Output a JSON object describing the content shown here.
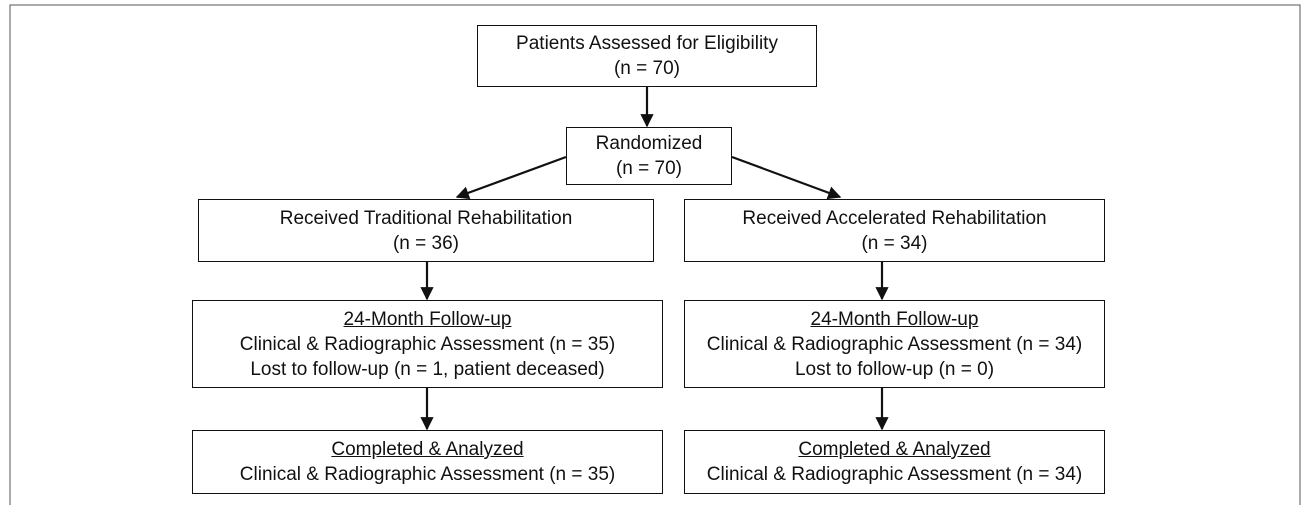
{
  "nodes": [
    {
      "lines": [
        "Patients Assessed for Eligibility",
        "(n = 70)"
      ]
    },
    {
      "lines": [
        "Randomized",
        "(n = 70)"
      ]
    },
    {
      "lines": [
        "Received Traditional Rehabilitation",
        "(n = 36)"
      ]
    },
    {
      "lines": [
        "Received Accelerated Rehabilitation",
        "(n = 34)"
      ]
    },
    {
      "heading": "24-Month Follow-up",
      "lines": [
        "Clinical & Radiographic Assessment (n = 35)",
        "Lost to follow-up (n = 1, patient deceased)"
      ]
    },
    {
      "heading": "24-Month Follow-up",
      "lines": [
        "Clinical & Radiographic Assessment (n = 34)",
        "Lost to follow-up (n = 0)"
      ]
    },
    {
      "heading": "Completed & Analyzed",
      "lines": [
        "Clinical & Radiographic Assessment (n = 35)"
      ]
    },
    {
      "heading": "Completed & Analyzed",
      "lines": [
        "Clinical & Radiographic Assessment (n = 34)"
      ]
    }
  ]
}
